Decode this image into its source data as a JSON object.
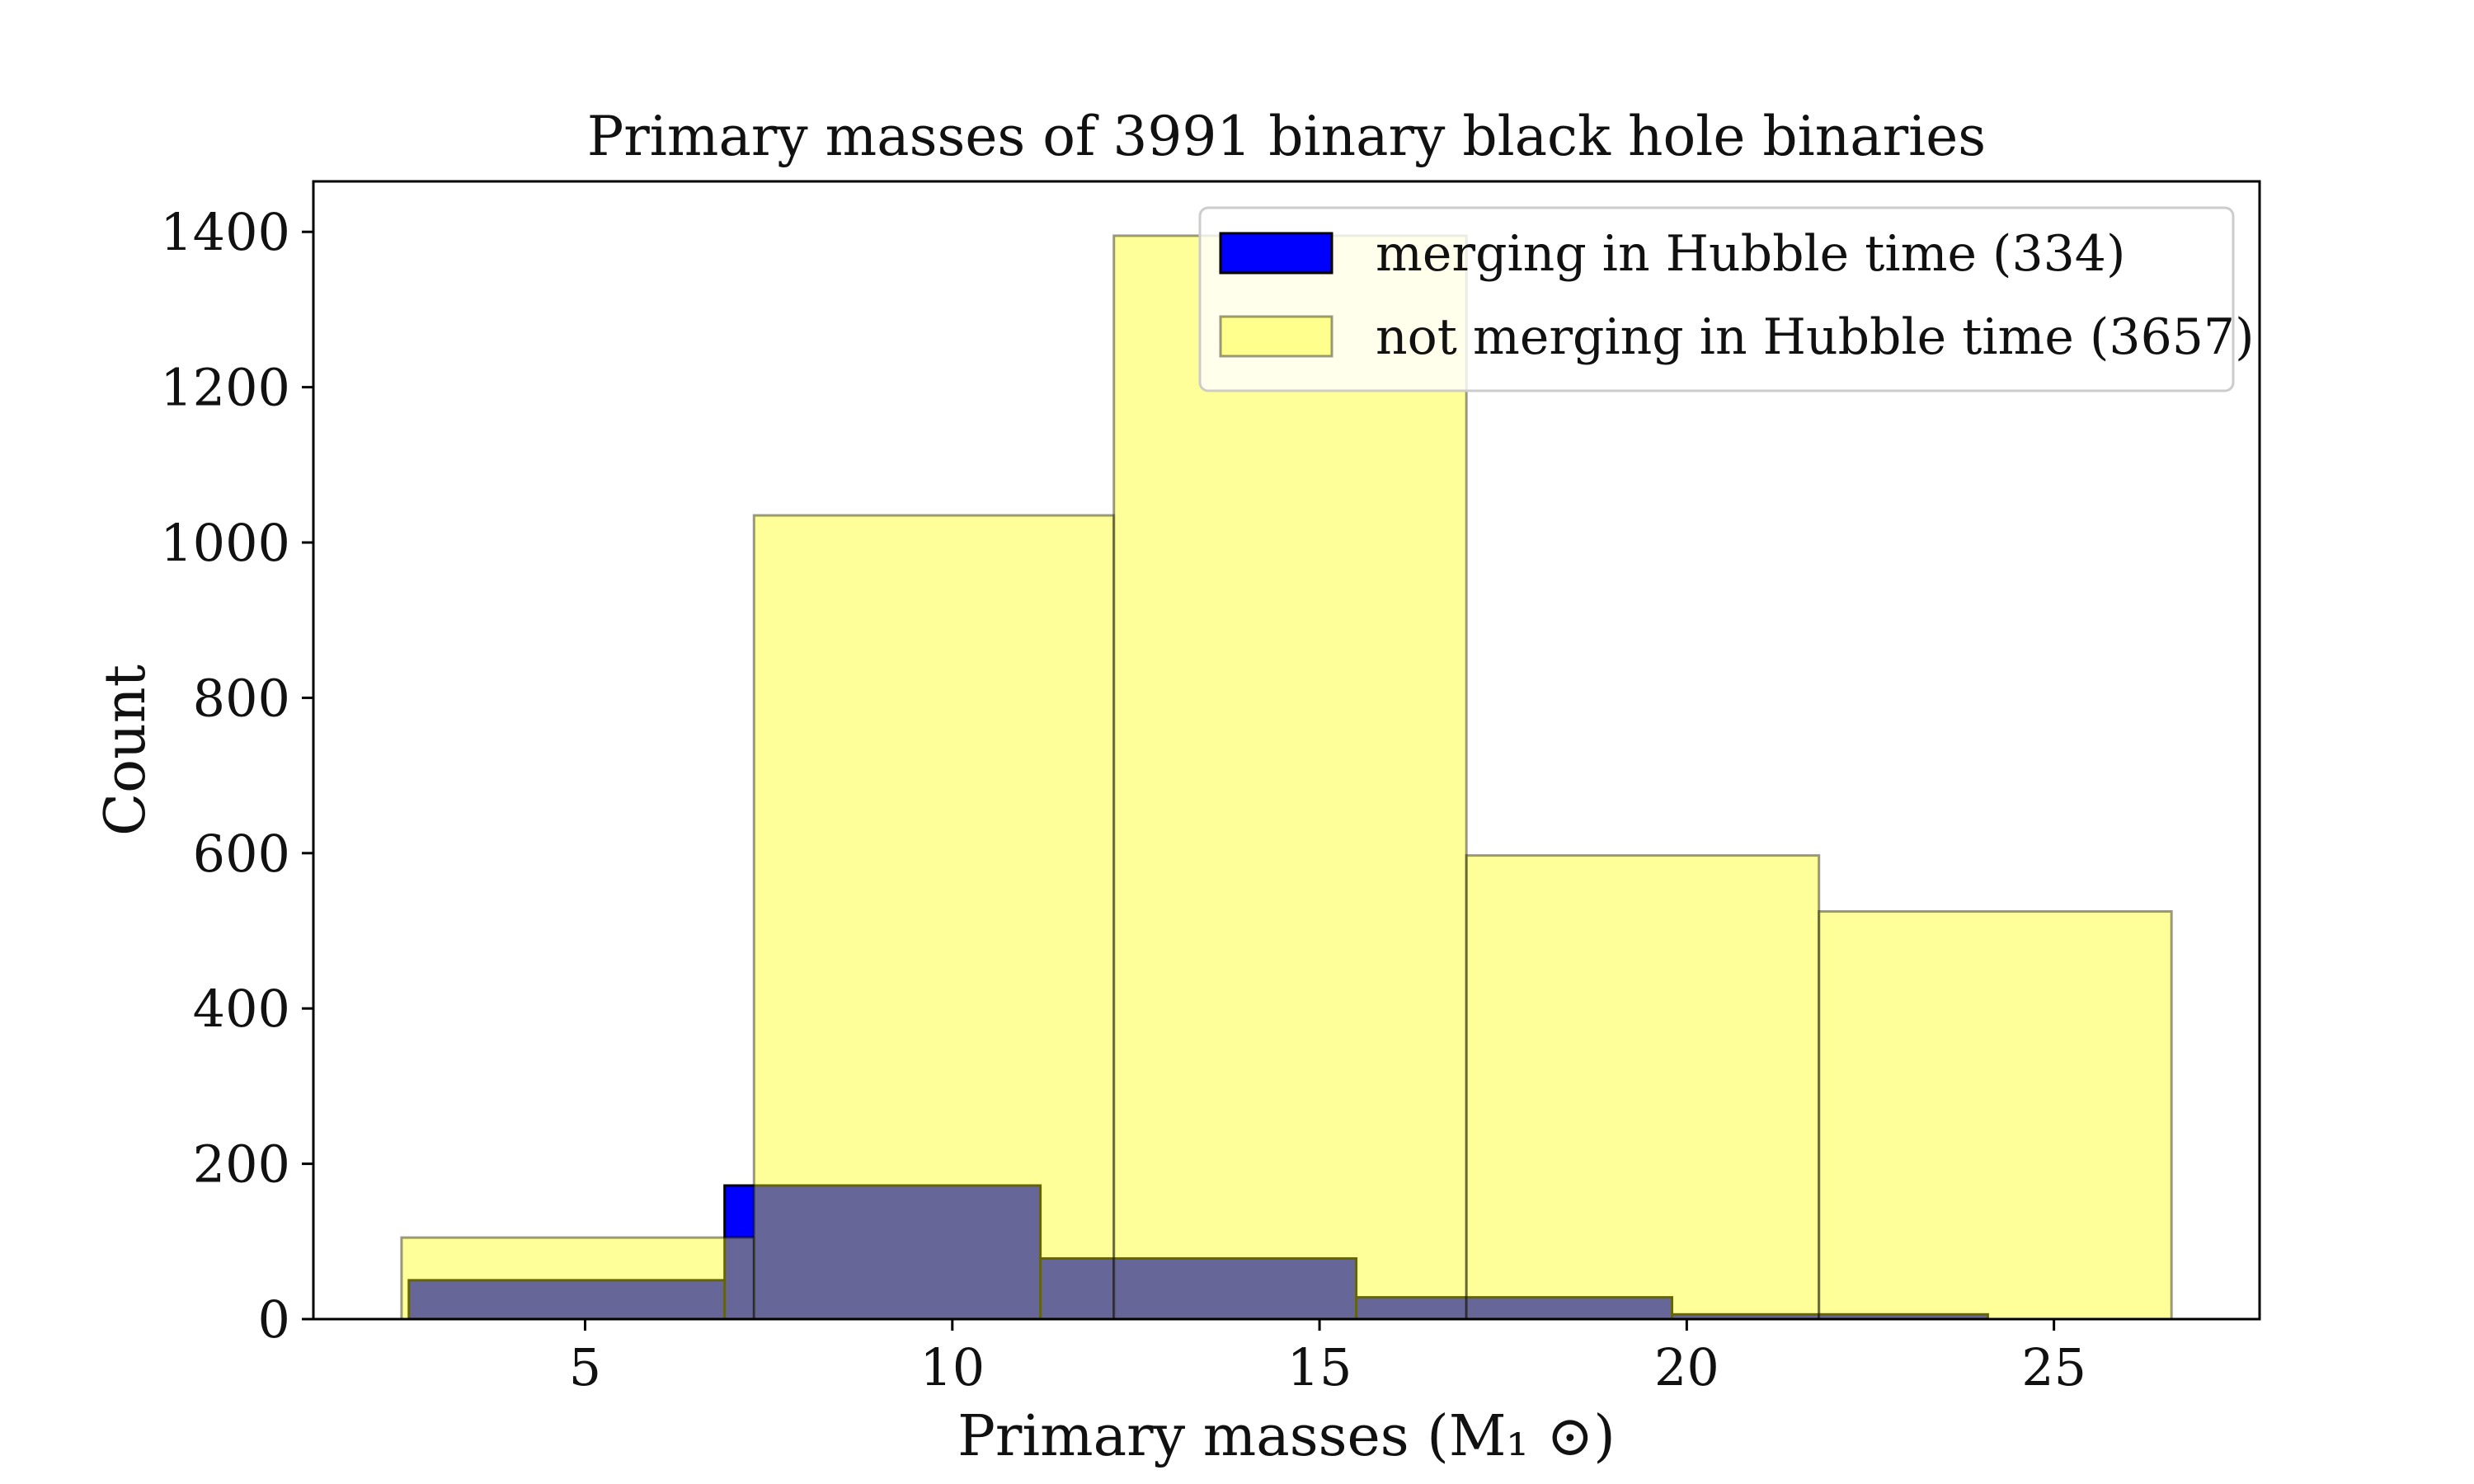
{
  "chart_data": {
    "type": "histogram",
    "title": "Primary masses of 3991 binary black hole binaries",
    "xlabel": "Primary masses (M₁ ⊙)",
    "ylabel": "Count",
    "xlim": [
      1.3,
      27.8
    ],
    "ylim": [
      0,
      1465
    ],
    "xticks": [
      5,
      10,
      15,
      20,
      25
    ],
    "yticks": [
      0,
      200,
      400,
      600,
      800,
      1000,
      1200,
      1400
    ],
    "grid": false,
    "legend_position": "top-right",
    "series": [
      {
        "name": "not merging in Hubble time (3657)",
        "color": "#ffff00",
        "alpha": 0.4,
        "edge_color": "#000000",
        "bins": [
          {
            "x0": 2.5,
            "x1": 7.3,
            "value": 105
          },
          {
            "x0": 7.3,
            "x1": 12.2,
            "value": 1035
          },
          {
            "x0": 12.2,
            "x1": 17.0,
            "value": 1395
          },
          {
            "x0": 17.0,
            "x1": 21.8,
            "value": 597
          },
          {
            "x0": 21.8,
            "x1": 26.6,
            "value": 525
          }
        ]
      },
      {
        "name": "merging in Hubble time (334)",
        "color": "#0000ff",
        "alpha": 1.0,
        "edge_color": "#000000",
        "bins": [
          {
            "x0": 2.6,
            "x1": 6.9,
            "value": 50
          },
          {
            "x0": 6.9,
            "x1": 11.2,
            "value": 172
          },
          {
            "x0": 11.2,
            "x1": 15.5,
            "value": 78
          },
          {
            "x0": 15.5,
            "x1": 19.8,
            "value": 28
          },
          {
            "x0": 19.8,
            "x1": 24.1,
            "value": 6
          }
        ]
      }
    ]
  }
}
